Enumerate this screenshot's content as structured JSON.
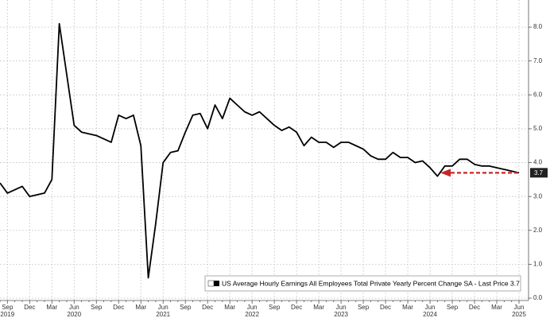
{
  "chart_data": {
    "type": "line",
    "legend": "US Average Hourly Earnings All Employees Total Private Yearly Percent Change SA - Last Price 3.7",
    "last_price": 3.7,
    "categories": [
      null,
      "Sep",
      null,
      null,
      "Dec",
      null,
      null,
      "Mar",
      null,
      null,
      "Jun",
      null,
      null,
      "Sep",
      null,
      null,
      "Dec",
      null,
      null,
      "Mar",
      null,
      null,
      "Jun",
      null,
      null,
      "Sep",
      null,
      null,
      "Dec",
      null,
      null,
      "Mar",
      null,
      null,
      "Jun",
      null,
      null,
      "Sep",
      null,
      null,
      "Dec",
      null,
      null,
      "Mar",
      null,
      null,
      "Jun",
      null,
      null,
      "Sep",
      null,
      null,
      "Dec",
      null,
      null,
      "Mar",
      null,
      null,
      "Jun",
      null,
      null,
      "Sep",
      null,
      null,
      "Dec",
      null,
      null,
      "Mar",
      null,
      null,
      "Jun"
    ],
    "years": [
      null,
      "2019",
      null,
      null,
      null,
      null,
      null,
      null,
      null,
      null,
      "2020",
      null,
      null,
      null,
      null,
      null,
      null,
      null,
      null,
      null,
      null,
      null,
      "2021",
      null,
      null,
      null,
      null,
      null,
      null,
      null,
      null,
      null,
      null,
      null,
      "2022",
      null,
      null,
      null,
      null,
      null,
      null,
      null,
      null,
      null,
      null,
      null,
      "2023",
      null,
      null,
      null,
      null,
      null,
      null,
      null,
      null,
      null,
      null,
      null,
      "2024",
      null,
      null,
      null,
      null,
      null,
      null,
      null,
      null,
      null,
      null,
      null,
      "2025"
    ],
    "series": [
      {
        "name": "US Average Hourly Earnings All Employees Total Private Yearly Percent Change SA",
        "color": "#000000",
        "values": [
          3.4,
          3.1,
          3.2,
          3.3,
          3.0,
          3.05,
          3.1,
          3.5,
          8.1,
          6.6,
          5.1,
          4.9,
          4.85,
          4.8,
          4.7,
          4.6,
          5.4,
          5.3,
          5.4,
          4.5,
          0.6,
          2.2,
          4.0,
          4.3,
          4.35,
          4.9,
          5.4,
          5.45,
          5.0,
          5.7,
          5.3,
          5.9,
          5.7,
          5.5,
          5.4,
          5.5,
          5.3,
          5.1,
          4.95,
          5.05,
          4.9,
          4.5,
          4.75,
          4.6,
          4.6,
          4.45,
          4.6,
          4.6,
          4.5,
          4.4,
          4.2,
          4.1,
          4.1,
          4.3,
          4.15,
          4.15,
          4.0,
          4.05,
          3.85,
          3.6,
          3.9,
          3.9,
          4.1,
          4.1,
          3.95,
          3.9,
          3.9,
          3.85,
          3.8,
          3.75,
          3.7
        ]
      }
    ],
    "ylim": [
      -0.07,
      8.8
    ],
    "yticks": [
      {
        "value": 0,
        "label": "0.0"
      },
      {
        "value": 1,
        "label": "1.0"
      },
      {
        "value": 2,
        "label": "2.0"
      },
      {
        "value": 3,
        "label": "3.0"
      },
      {
        "value": 4,
        "label": "4.0"
      },
      {
        "value": 5,
        "label": "5.0"
      },
      {
        "value": 6,
        "label": "6.0"
      },
      {
        "value": 7,
        "label": "7.0"
      },
      {
        "value": 8,
        "label": "8.0"
      }
    ],
    "grid": true
  }
}
